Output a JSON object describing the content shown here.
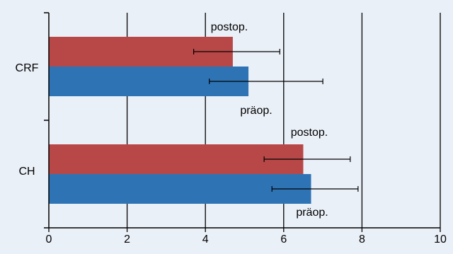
{
  "chart_data": {
    "type": "bar",
    "orientation": "horizontal",
    "title": "",
    "xlabel": "",
    "ylabel": "",
    "xlim": [
      0,
      10
    ],
    "x_ticks": [
      "0",
      "2",
      "4",
      "6",
      "8",
      "10"
    ],
    "grid": "vertical",
    "categories": [
      "CRF",
      "CH"
    ],
    "series": [
      {
        "name": "postop.",
        "color": "#b84848",
        "values": [
          4.7,
          6.5
        ],
        "error_low": [
          3.7,
          5.5
        ],
        "error_high": [
          5.9,
          7.7
        ]
      },
      {
        "name": "präop.",
        "color": "#2e74b5",
        "values": [
          5.1,
          6.7
        ],
        "error_low": [
          4.1,
          5.7
        ],
        "error_high": [
          7.0,
          7.9
        ]
      }
    ],
    "annotations": {
      "CRF": {
        "postop": "postop.",
        "praeop": "präop."
      },
      "CH": {
        "postop": "postop.",
        "praeop": "präop."
      }
    }
  }
}
